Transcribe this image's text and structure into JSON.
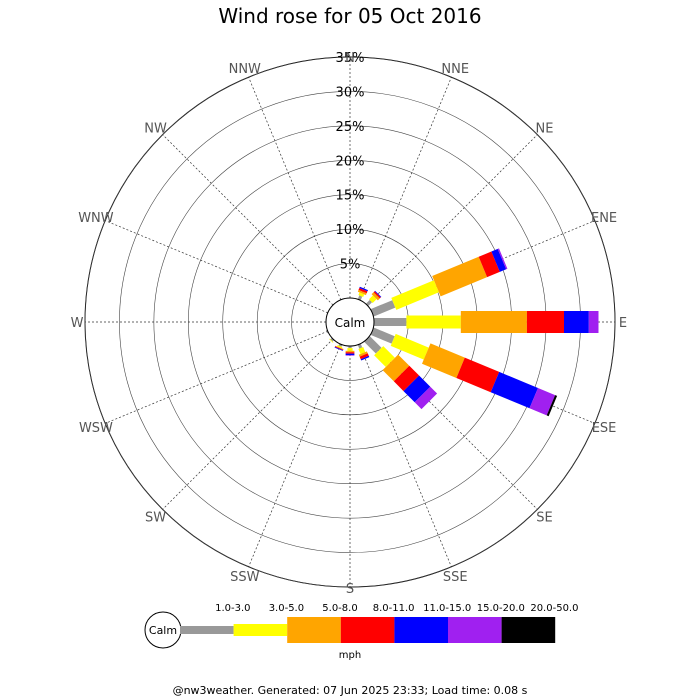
{
  "title": "Wind rose for 05 Oct 2016",
  "footer": "@nw3weather. Generated: 07 Jun 2025 23:33; Load time: 0.08 s",
  "chart_data": {
    "type": "wind-rose",
    "title": "Wind rose for 05 Oct 2016",
    "directions": [
      "N",
      "NNE",
      "NE",
      "ENE",
      "E",
      "ESE",
      "SE",
      "SSE",
      "S",
      "SSW",
      "SW",
      "WSW",
      "W",
      "WNW",
      "NW",
      "NNW"
    ],
    "radial_ticks": [
      "5%",
      "10%",
      "15%",
      "20%",
      "25%",
      "30%",
      "35%"
    ],
    "radial_tick_values": [
      5,
      10,
      15,
      20,
      25,
      30,
      35
    ],
    "r_max": 35,
    "unit": "mph",
    "center_label": "Calm",
    "speed_bins": [
      {
        "label": "1.0-3.0",
        "color": "#999999"
      },
      {
        "label": "3.0-5.0",
        "color": "#ffff00"
      },
      {
        "label": "5.0-8.0",
        "color": "#ffa500"
      },
      {
        "label": "8.0-11.0",
        "color": "#ff0000"
      },
      {
        "label": "11.0-15.0",
        "color": "#0000ff"
      },
      {
        "label": "15.0-20.0",
        "color": "#a020f0"
      },
      {
        "label": "20.0-50.0",
        "color": "#000000"
      }
    ],
    "series": [
      {
        "direction": "NNE",
        "values": [
          0.6,
          0.4,
          0.3,
          0.3,
          0.2,
          0.0,
          0.0
        ]
      },
      {
        "direction": "NE",
        "values": [
          0.8,
          0.8,
          0.4,
          0.2,
          0.1,
          0.0,
          0.0
        ]
      },
      {
        "direction": "ENE",
        "values": [
          3.4,
          6.7,
          7.3,
          2.0,
          1.0,
          0.2,
          0.0
        ]
      },
      {
        "direction": "E",
        "values": [
          4.7,
          7.9,
          9.6,
          5.4,
          3.6,
          1.4,
          0.0
        ]
      },
      {
        "direction": "ESE",
        "values": [
          3.3,
          5.2,
          5.4,
          5.4,
          6.1,
          2.7,
          0.3
        ]
      },
      {
        "direction": "SE",
        "values": [
          2.4,
          2.4,
          2.3,
          2.0,
          2.3,
          1.4,
          0.0
        ]
      },
      {
        "direction": "SSE",
        "values": [
          0.6,
          0.8,
          0.3,
          0.4,
          0.2,
          0.0,
          0.0
        ]
      },
      {
        "direction": "S",
        "values": [
          0.3,
          0.4,
          0.2,
          0.2,
          0.2,
          0.1,
          0.0
        ]
      },
      {
        "direction": "SSW",
        "values": [
          0.3,
          0.2,
          0.1,
          0.1,
          0.1,
          0.0,
          0.0
        ]
      },
      {
        "direction": "SW",
        "values": [
          0.3,
          0.1,
          0.0,
          0.0,
          0.0,
          0.0,
          0.0
        ]
      },
      {
        "direction": "WSW",
        "values": [
          0.2,
          0.0,
          0.0,
          0.0,
          0.0,
          0.0,
          0.0
        ]
      }
    ]
  }
}
